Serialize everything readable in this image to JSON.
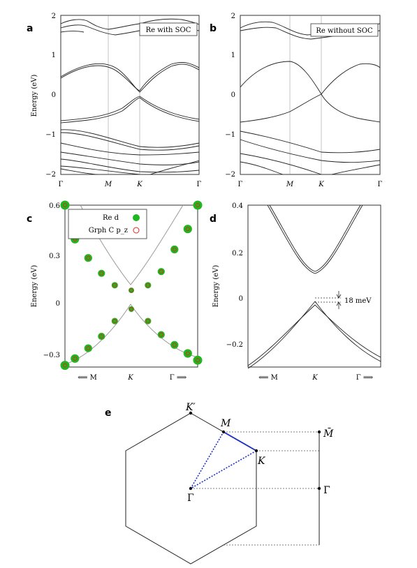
{
  "panels": {
    "a": {
      "letter": "a",
      "legend": "Re with SOC",
      "ylabel": "Energy (eV)",
      "yticks": [
        "2",
        "1",
        "0",
        "−1",
        "−2"
      ],
      "xticks": [
        "Γ",
        "M",
        "K",
        "Γ"
      ]
    },
    "b": {
      "letter": "b",
      "legend": "Re without SOC",
      "yticks": [
        "2",
        "1",
        "0",
        "−1",
        "−2"
      ],
      "xticks": [
        "Γ",
        "M",
        "K",
        "Γ"
      ]
    },
    "c": {
      "letter": "c",
      "ylabel": "Energy (eV)",
      "yticks": [
        "0.6",
        "0.3",
        "0",
        "−0.3"
      ],
      "xticks": [
        "⟸ M",
        "K",
        "Γ ⟹"
      ],
      "legend_re": "Re d",
      "legend_c": "Grph C p_z"
    },
    "d": {
      "letter": "d",
      "ylabel": "Energy (eV)",
      "yticks": [
        "0.4",
        "0.2",
        "0",
        "−0.2"
      ],
      "xticks": [
        "⟸ M",
        "K",
        "Γ ⟹"
      ],
      "gap_label": "18 meV"
    },
    "e": {
      "letter": "e",
      "K_prime": "K′",
      "M": "M",
      "K": "K",
      "Gamma": "Γ",
      "M_bar": "M̄",
      "Gamma_bar": "Γ̄"
    }
  },
  "colors": {
    "re_d": "#1fb61f",
    "grph_c": "#e0281c",
    "bz_path": "#1a2fc8"
  },
  "chart_data": [
    {
      "type": "line",
      "panel": "a",
      "title": "Re with SOC",
      "ylabel": "Energy (eV)",
      "ylim": [
        -2,
        2
      ],
      "x_ticks": [
        "Γ",
        "M",
        "K",
        "Γ"
      ],
      "series": [
        {
          "points": [
            [
              0,
              0.45
            ],
            [
              0.25,
              0.85
            ],
            [
              0.45,
              0.55
            ],
            [
              0.58,
              0.1
            ],
            [
              0.7,
              0.55
            ],
            [
              0.85,
              0.9
            ],
            [
              1,
              0.75
            ]
          ]
        },
        {
          "points": [
            [
              0,
              0.45
            ],
            [
              0.25,
              0.88
            ],
            [
              0.45,
              0.6
            ],
            [
              0.58,
              0.13
            ],
            [
              0.7,
              0.6
            ],
            [
              0.85,
              0.95
            ],
            [
              1,
              0.78
            ]
          ]
        },
        {
          "points": [
            [
              0,
              -1.05
            ],
            [
              0.2,
              -0.6
            ],
            [
              0.45,
              -0.35
            ],
            [
              0.58,
              -0.02
            ],
            [
              0.7,
              -0.35
            ],
            [
              0.85,
              -0.55
            ],
            [
              1,
              -0.62
            ]
          ]
        },
        {
          "points": [
            [
              0,
              -1.0
            ],
            [
              0.2,
              -0.58
            ],
            [
              0.45,
              -0.38
            ],
            [
              0.58,
              -0.05
            ],
            [
              0.7,
              -0.4
            ],
            [
              0.85,
              -0.6
            ],
            [
              1,
              -0.65
            ]
          ]
        }
      ]
    },
    {
      "type": "line",
      "panel": "b",
      "title": "Re without SOC",
      "ylabel": "Energy (eV)",
      "ylim": [
        -2,
        2
      ],
      "x_ticks": [
        "Γ",
        "M",
        "K",
        "Γ"
      ],
      "series": [
        {
          "points": [
            [
              0,
              0.2
            ],
            [
              0.25,
              0.85
            ],
            [
              0.45,
              0.8
            ],
            [
              0.58,
              0.05
            ],
            [
              0.7,
              -0.5
            ],
            [
              1,
              -0.62
            ]
          ]
        },
        {
          "points": [
            [
              0,
              -1.0
            ],
            [
              0.25,
              -0.55
            ],
            [
              0.45,
              -0.35
            ],
            [
              0.58,
              0.05
            ],
            [
              0.7,
              0.5
            ],
            [
              0.85,
              0.88
            ],
            [
              1,
              0.78
            ]
          ]
        }
      ]
    },
    {
      "type": "scatter",
      "panel": "c",
      "ylabel": "Energy (eV)",
      "ylim": [
        -0.35,
        0.6
      ],
      "x_ticks": [
        "⟸ M",
        "K",
        "Γ ⟹"
      ],
      "series": [
        {
          "name": "Re d",
          "points": [
            [
              -1,
              0.6
            ],
            [
              -0.85,
              0.4
            ],
            [
              -0.65,
              0.29
            ],
            [
              -0.45,
              0.2
            ],
            [
              -0.25,
              0.13
            ],
            [
              0,
              0.1
            ],
            [
              0.25,
              0.13
            ],
            [
              0.45,
              0.21
            ],
            [
              0.65,
              0.34
            ],
            [
              0.85,
              0.46
            ],
            [
              1,
              0.6
            ]
          ]
        },
        {
          "name": "Grph C p_z",
          "points": [
            [
              -1,
              -0.34
            ],
            [
              -0.85,
              -0.3
            ],
            [
              -0.65,
              -0.24
            ],
            [
              -0.45,
              -0.17
            ],
            [
              -0.25,
              -0.08
            ],
            [
              0,
              -0.01
            ],
            [
              0.25,
              -0.08
            ],
            [
              0.45,
              -0.16
            ],
            [
              0.65,
              -0.22
            ],
            [
              0.85,
              -0.27
            ],
            [
              1,
              -0.31
            ]
          ]
        }
      ]
    },
    {
      "type": "line",
      "panel": "d",
      "ylabel": "Energy (eV)",
      "ylim": [
        -0.3,
        0.4
      ],
      "x_ticks": [
        "⟸ M",
        "K",
        "Γ ⟹"
      ],
      "annotation": "18 meV",
      "series": [
        {
          "points": [
            [
              -1,
              0.4
            ],
            [
              -0.5,
              0.23
            ],
            [
              -0.2,
              0.13
            ],
            [
              0,
              0.105
            ],
            [
              0.2,
              0.13
            ],
            [
              0.5,
              0.23
            ],
            [
              1,
              0.4
            ]
          ]
        },
        {
          "points": [
            [
              -1,
              -0.3
            ],
            [
              -0.5,
              -0.15
            ],
            [
              -0.2,
              -0.05
            ],
            [
              0,
              -0.018
            ],
            [
              0.2,
              -0.05
            ],
            [
              0.5,
              -0.15
            ],
            [
              1,
              -0.3
            ]
          ]
        }
      ]
    }
  ]
}
